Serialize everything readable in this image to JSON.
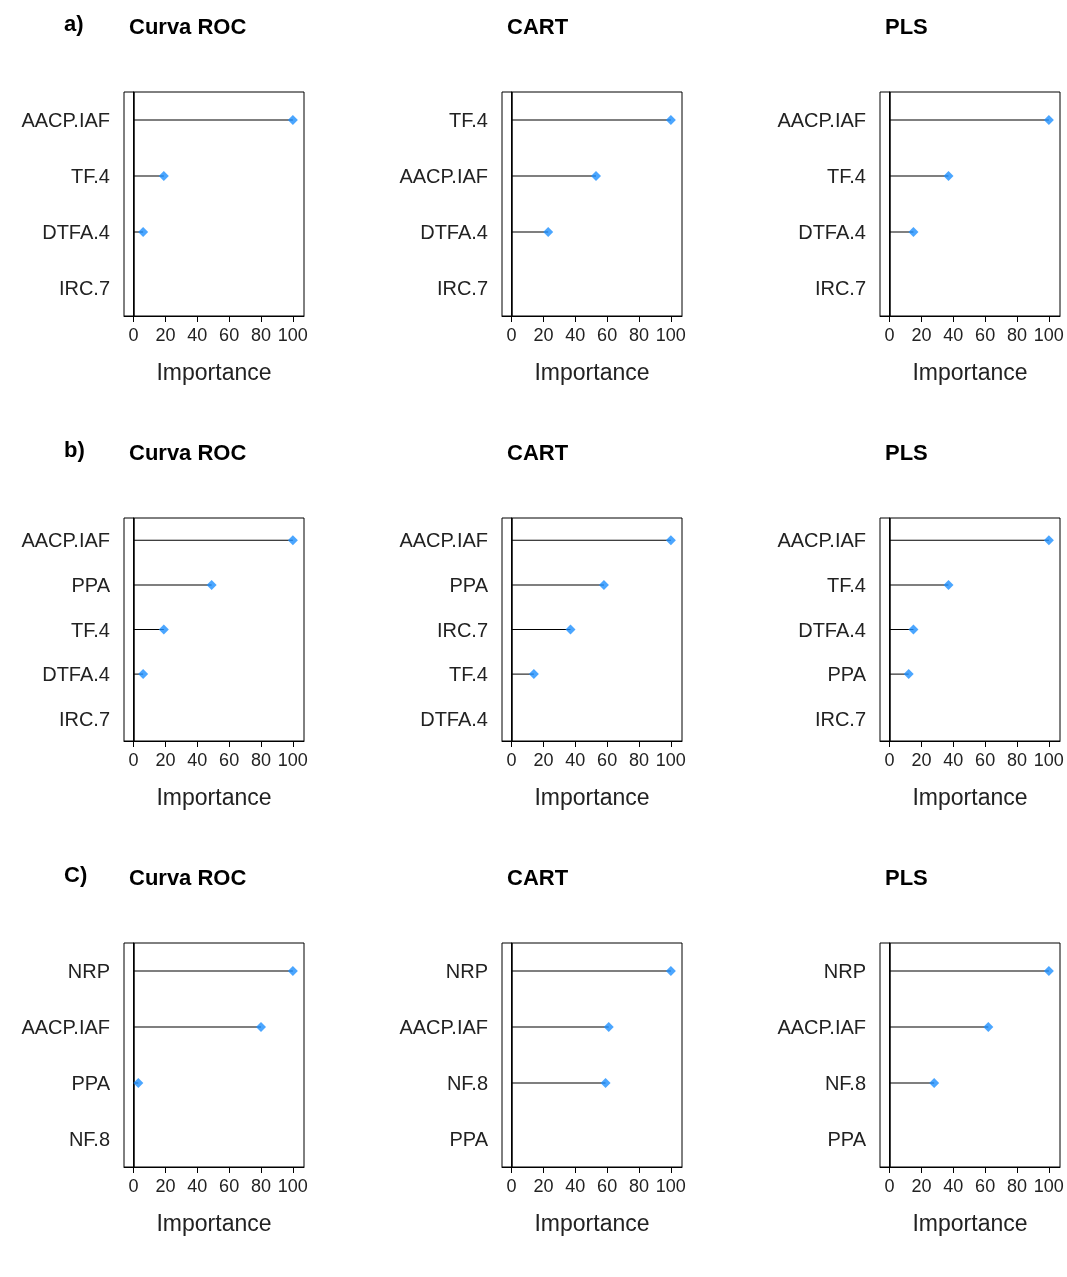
{
  "chart_data": [
    {
      "type": "lollipop",
      "title": "Curva ROC",
      "annotations": [
        "a)"
      ],
      "orientation": "horizontal",
      "xlabel": "Importance",
      "categories": [
        "AACP.IAF",
        "TF.4",
        "DTFA.4",
        "IRC.7"
      ],
      "series": [
        {
          "color": "#1e90ff",
          "values": [
            100,
            19,
            6,
            null
          ]
        }
      ],
      "marker": "diamond",
      "xlim": [
        -6,
        107
      ],
      "xticks": [
        0,
        20,
        40,
        60,
        80,
        100
      ],
      "ref_lines": [
        {
          "axis": "x",
          "value": 0
        }
      ]
    },
    {
      "type": "lollipop",
      "title": "CART",
      "orientation": "horizontal",
      "xlabel": "Importance",
      "categories": [
        "TF.4",
        "AACP.IAF",
        "DTFA.4",
        "IRC.7"
      ],
      "series": [
        {
          "color": "#1e90ff",
          "values": [
            100,
            53,
            23,
            null
          ]
        }
      ],
      "marker": "diamond",
      "xlim": [
        -6,
        107
      ],
      "xticks": [
        0,
        20,
        40,
        60,
        80,
        100
      ],
      "ref_lines": [
        {
          "axis": "x",
          "value": 0
        }
      ]
    },
    {
      "type": "lollipop",
      "title": "PLS",
      "orientation": "horizontal",
      "xlabel": "Importance",
      "categories": [
        "AACP.IAF",
        "TF.4",
        "DTFA.4",
        "IRC.7"
      ],
      "series": [
        {
          "color": "#1e90ff",
          "values": [
            100,
            37,
            15,
            null
          ]
        }
      ],
      "marker": "diamond",
      "xlim": [
        -6,
        107
      ],
      "xticks": [
        0,
        20,
        40,
        60,
        80,
        100
      ],
      "ref_lines": [
        {
          "axis": "x",
          "value": 0
        }
      ]
    },
    {
      "type": "lollipop",
      "title": "Curva ROC",
      "annotations": [
        "b)"
      ],
      "orientation": "horizontal",
      "xlabel": "Importance",
      "categories": [
        "AACP.IAF",
        "PPA",
        "TF.4",
        "DTFA.4",
        "IRC.7"
      ],
      "series": [
        {
          "color": "#1e90ff",
          "values": [
            100,
            49,
            19,
            6,
            null
          ]
        }
      ],
      "marker": "diamond",
      "xlim": [
        -6,
        107
      ],
      "xticks": [
        0,
        20,
        40,
        60,
        80,
        100
      ],
      "ref_lines": [
        {
          "axis": "x",
          "value": 0
        }
      ]
    },
    {
      "type": "lollipop",
      "title": "CART",
      "orientation": "horizontal",
      "xlabel": "Importance",
      "categories": [
        "AACP.IAF",
        "PPA",
        "IRC.7",
        "TF.4",
        "DTFA.4"
      ],
      "series": [
        {
          "color": "#1e90ff",
          "values": [
            100,
            58,
            37,
            14,
            null
          ]
        }
      ],
      "marker": "diamond",
      "xlim": [
        -6,
        107
      ],
      "xticks": [
        0,
        20,
        40,
        60,
        80,
        100
      ],
      "ref_lines": [
        {
          "axis": "x",
          "value": 0
        }
      ]
    },
    {
      "type": "lollipop",
      "title": "PLS",
      "orientation": "horizontal",
      "xlabel": "Importance",
      "categories": [
        "AACP.IAF",
        "TF.4",
        "DTFA.4",
        "PPA",
        "IRC.7"
      ],
      "series": [
        {
          "color": "#1e90ff",
          "values": [
            100,
            37,
            15,
            12,
            null
          ]
        }
      ],
      "marker": "diamond",
      "xlim": [
        -6,
        107
      ],
      "xticks": [
        0,
        20,
        40,
        60,
        80,
        100
      ],
      "ref_lines": [
        {
          "axis": "x",
          "value": 0
        }
      ]
    },
    {
      "type": "lollipop",
      "title": "Curva ROC",
      "annotations": [
        "C)"
      ],
      "orientation": "horizontal",
      "xlabel": "Importance",
      "categories": [
        "NRP",
        "AACP.IAF",
        "PPA",
        "NF.8"
      ],
      "series": [
        {
          "color": "#1e90ff",
          "values": [
            100,
            80,
            3,
            null
          ]
        }
      ],
      "marker": "diamond",
      "xlim": [
        -6,
        107
      ],
      "xticks": [
        0,
        20,
        40,
        60,
        80,
        100
      ],
      "ref_lines": [
        {
          "axis": "x",
          "value": 0
        }
      ]
    },
    {
      "type": "lollipop",
      "title": "CART",
      "orientation": "horizontal",
      "xlabel": "Importance",
      "categories": [
        "NRP",
        "AACP.IAF",
        "NF.8",
        "PPA"
      ],
      "series": [
        {
          "color": "#1e90ff",
          "values": [
            100,
            61,
            59,
            null
          ]
        }
      ],
      "marker": "diamond",
      "xlim": [
        -6,
        107
      ],
      "xticks": [
        0,
        20,
        40,
        60,
        80,
        100
      ],
      "ref_lines": [
        {
          "axis": "x",
          "value": 0
        }
      ]
    },
    {
      "type": "lollipop",
      "title": "PLS",
      "orientation": "horizontal",
      "xlabel": "Importance",
      "categories": [
        "NRP",
        "AACP.IAF",
        "NF.8",
        "PPA"
      ],
      "series": [
        {
          "color": "#1e90ff",
          "values": [
            100,
            62,
            28,
            null
          ]
        }
      ],
      "marker": "diamond",
      "xlim": [
        -6,
        107
      ],
      "xticks": [
        0,
        20,
        40,
        60,
        80,
        100
      ],
      "ref_lines": [
        {
          "axis": "x",
          "value": 0
        }
      ]
    }
  ]
}
